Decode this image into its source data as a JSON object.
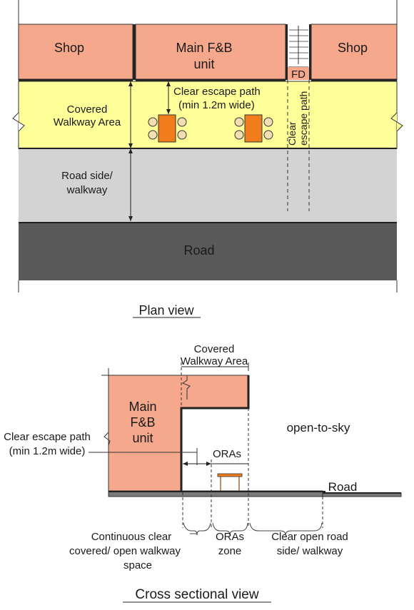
{
  "plan": {
    "shop_left": "Shop",
    "main_fb_line1": "Main F&B",
    "main_fb_line2": "unit",
    "fd": "FD",
    "shop_right": "Shop",
    "escape_line1": "Clear escape path",
    "escape_line2": "(min 1.2m wide)",
    "covered_line1": "Covered",
    "covered_line2": "Walkway Area",
    "clear_vert_1": "Clear",
    "clear_vert_2": "escape path",
    "roadside_line1": "Road side/",
    "roadside_line2": "walkway",
    "road": "Road",
    "caption": "Plan view"
  },
  "section": {
    "covered_line1": "Covered",
    "covered_line2": "Walkway Area",
    "main_fb_line1": "Main",
    "main_fb_line2": "F&B",
    "main_fb_line3": "unit",
    "open_to_sky": "open-to-sky",
    "escape_line1": "Clear escape path",
    "escape_line2": "(min 1.2m wide)",
    "oras": "ORAs",
    "road": "Road",
    "continuous_line1": "Continuous clear",
    "continuous_line2": "covered/ open walkway",
    "continuous_line3": "space",
    "oras_zone_line1": "ORAs",
    "oras_zone_line2": "zone",
    "clear_open_line1": "Clear open road",
    "clear_open_line2": "side/ walkway",
    "caption": "Cross sectional view"
  },
  "colors": {
    "shop": "#f6a88c",
    "walkway": "#ffff99",
    "roadside": "#d3d3d3",
    "road": "#595959",
    "table": "#f07c1c",
    "chair": "#f5deb3"
  }
}
